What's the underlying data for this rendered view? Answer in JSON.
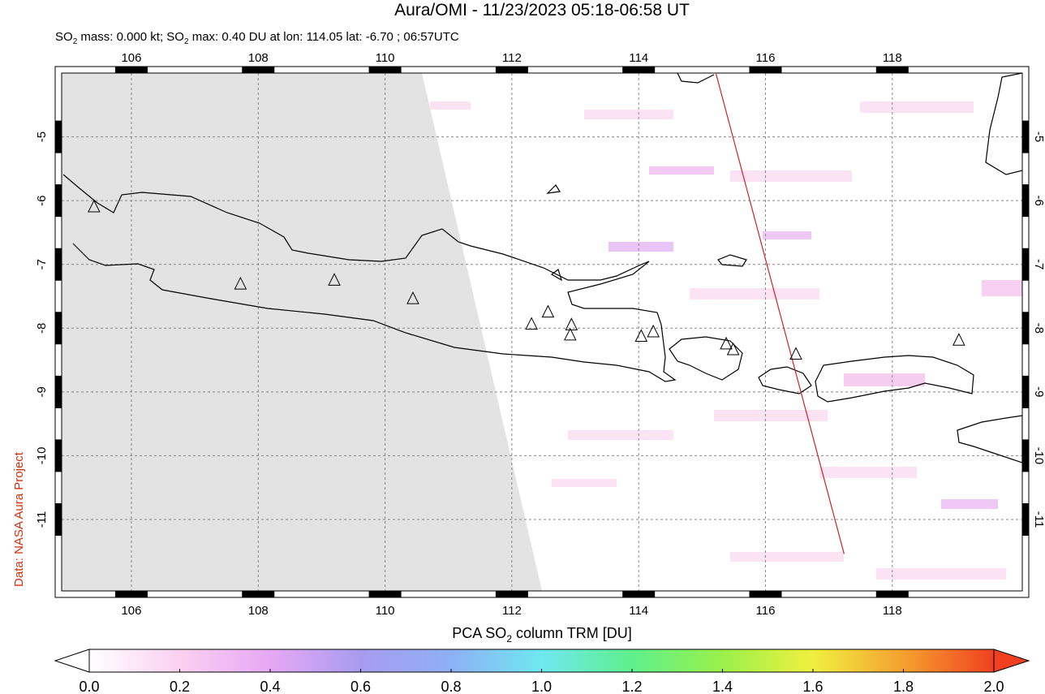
{
  "title": "Aura/OMI - 11/23/2023 05:18-06:58 UT",
  "subtitle_parts": [
    "SO",
    "2",
    " mass: 0.000 kt; SO",
    "2",
    " max: 0.40 DU at lon: 114.05 lat: -6.70 ; 06:57UTC"
  ],
  "side_label": "Data: NASA Aura Project",
  "map": {
    "xlim": [
      104.9,
      120.05
    ],
    "ylim": [
      -12.12,
      -4.0
    ],
    "xticks": [
      106,
      108,
      110,
      112,
      114,
      116,
      118
    ],
    "yticks": [
      -5,
      -6,
      -7,
      -8,
      -9,
      -10,
      -11
    ],
    "grid": true,
    "orbit_track": {
      "color": "#d42020",
      "lon": [
        115.22,
        117.24
      ],
      "lat": [
        -4.01,
        -11.54
      ]
    },
    "volcanoes": {
      "lon": [
        105.41,
        107.72,
        109.2,
        110.44,
        112.31,
        112.57,
        112.94,
        112.92,
        114.04,
        114.23,
        115.38,
        115.49,
        116.48,
        119.05
      ],
      "lat": [
        -6.1,
        -7.31,
        -7.25,
        -7.54,
        -7.94,
        -7.75,
        -7.95,
        -8.11,
        -8.13,
        -8.06,
        -8.25,
        -8.34,
        -8.41,
        -8.19
      ]
    }
  },
  "colorbar": {
    "title_parts": [
      "PCA SO",
      "2",
      " column TRM [DU]"
    ],
    "range": [
      0,
      2
    ],
    "colors": [
      "#ffffff",
      "#fbd0f0",
      "#e6a8f5",
      "#a89cf0",
      "#8fb0f5",
      "#6fe8f0",
      "#5ef08c",
      "#9bf04a",
      "#f0f040",
      "#f5a030",
      "#f04020"
    ],
    "ticks": [
      {
        "value": 0,
        "label": "0.0"
      },
      {
        "value": 0.2,
        "label": "0.2"
      },
      {
        "value": 0.4,
        "label": "0.4"
      },
      {
        "value": 0.6,
        "label": "0.6"
      },
      {
        "value": 0.8,
        "label": "0.8"
      },
      {
        "value": 1.0,
        "label": "1.0"
      },
      {
        "value": 1.2,
        "label": "1.2"
      },
      {
        "value": 1.4,
        "label": "1.4"
      },
      {
        "value": 1.6,
        "label": "1.6"
      },
      {
        "value": 1.8,
        "label": "1.8"
      },
      {
        "value": 2.0,
        "label": "2.0"
      }
    ]
  }
}
